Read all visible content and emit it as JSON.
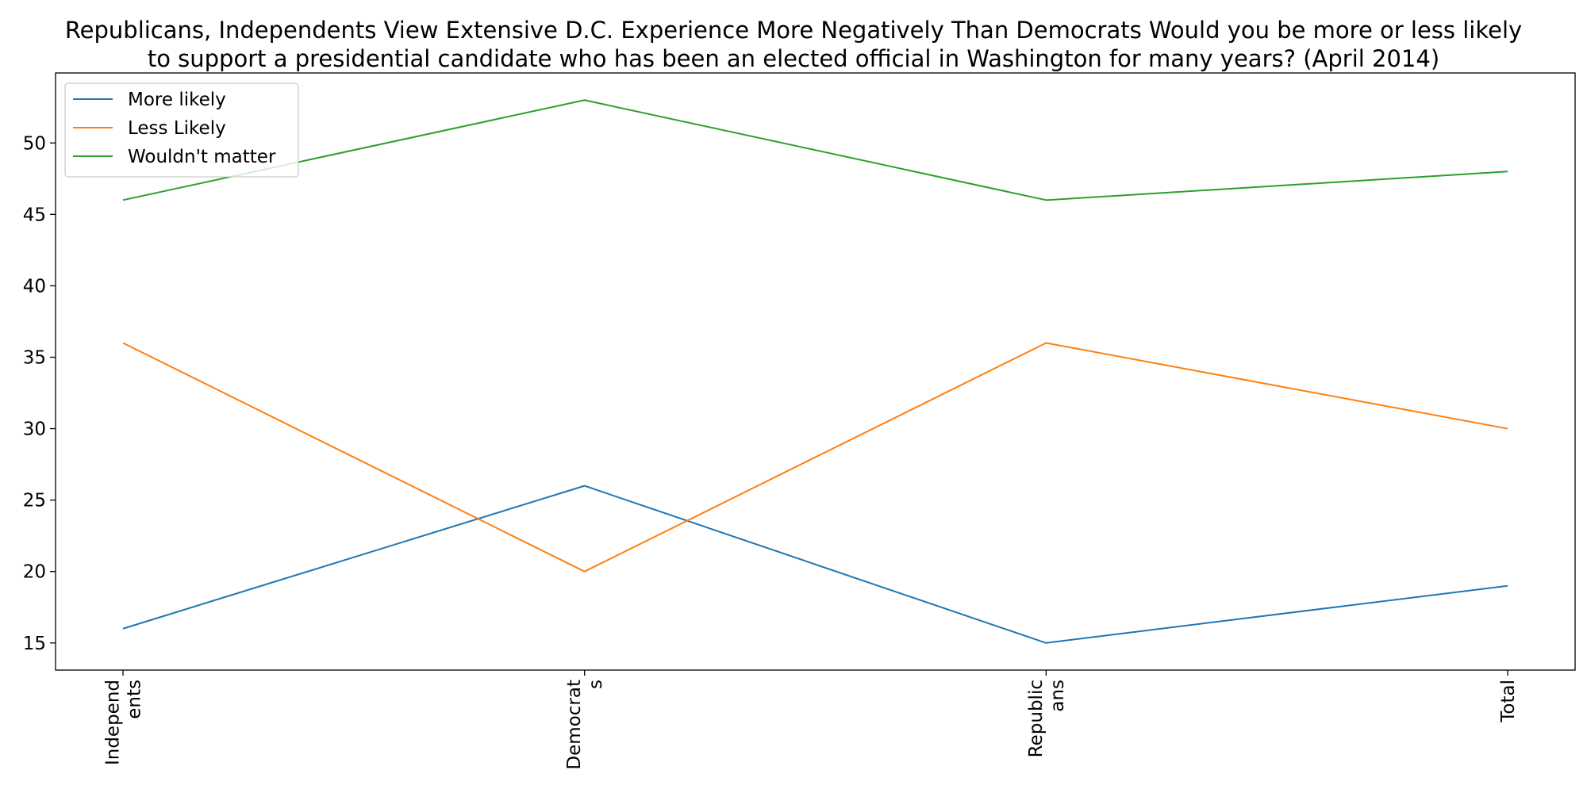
{
  "chart_data": {
    "type": "line",
    "title": "Republicans, Independents View Extensive D.C. Experience More Negatively Than Democrats Would you be more or less likely to support a presidential candidate who has been an elected official in Washington for many years? (April 2014)",
    "title_lines": [
      "Republicans, Independents View Extensive D.C. Experience More Negatively Than Democrats Would you be more or less likely",
      "to support a presidential candidate who has been an elected official in Washington for many years? (April 2014)"
    ],
    "xlabel": "",
    "ylabel": "",
    "categories": [
      "Independents",
      "Democrats",
      "Republicans",
      "Total"
    ],
    "category_tick_lines": [
      [
        "Independ",
        "ents"
      ],
      [
        "Democrat",
        "s"
      ],
      [
        "Republic",
        "ans"
      ],
      [
        "Total"
      ]
    ],
    "series": [
      {
        "name": "More likely",
        "color": "#1f77b4",
        "values": [
          16,
          26,
          15,
          19
        ]
      },
      {
        "name": "Less Likely",
        "color": "#ff7f0e",
        "values": [
          36,
          20,
          36,
          30
        ]
      },
      {
        "name": "Wouldn't matter",
        "color": "#2ca02c",
        "values": [
          46,
          53,
          46,
          48
        ]
      }
    ],
    "yticks": [
      15,
      20,
      25,
      30,
      35,
      40,
      45,
      50
    ],
    "ylim": [
      13.1,
      54.9
    ],
    "grid": false,
    "legend_position": "upper-left"
  }
}
